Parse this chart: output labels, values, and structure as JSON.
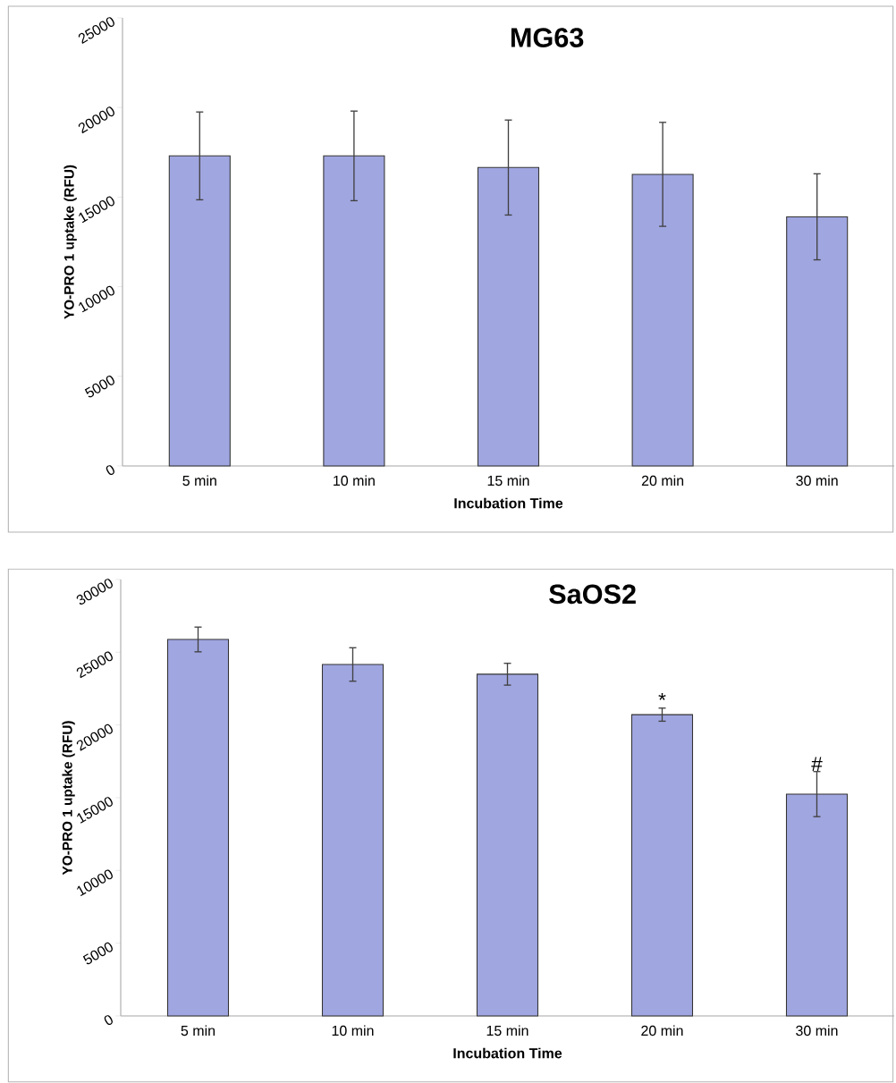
{
  "chart_data": [
    {
      "type": "bar",
      "title": "MG63",
      "xlabel": "Incubation Time",
      "ylabel": "YO-PRO 1 uptake (RFU)",
      "categories": [
        "5 min",
        "10 min",
        "15 min",
        "20 min",
        "30 min"
      ],
      "values": [
        17300,
        17300,
        16650,
        16270,
        13900
      ],
      "errors": [
        2450,
        2500,
        2650,
        2900,
        2400
      ],
      "color": "#a0a6e0",
      "ylim": [
        0,
        25000
      ],
      "yticks": [
        0,
        5000,
        10000,
        15000,
        20000,
        25000
      ]
    },
    {
      "type": "bar",
      "title": "SaOS2",
      "xlabel": "Incubation Time",
      "ylabel": "YO-PRO 1 uptake (RFU)",
      "categories": [
        "5 min",
        "10 min",
        "15 min",
        "20 min",
        "30 min"
      ],
      "values": [
        25880,
        24160,
        23490,
        20710,
        15250
      ],
      "errors": [
        850,
        1150,
        750,
        450,
        1550
      ],
      "color": "#a0a6e0",
      "ylim": [
        0,
        30000
      ],
      "yticks": [
        0,
        5000,
        10000,
        15000,
        20000,
        25000,
        30000
      ],
      "annotations": [
        {
          "text": "*",
          "x": "20 min",
          "y": 21140
        },
        {
          "text": "#",
          "x": "30 min",
          "y": 16750
        }
      ]
    }
  ]
}
